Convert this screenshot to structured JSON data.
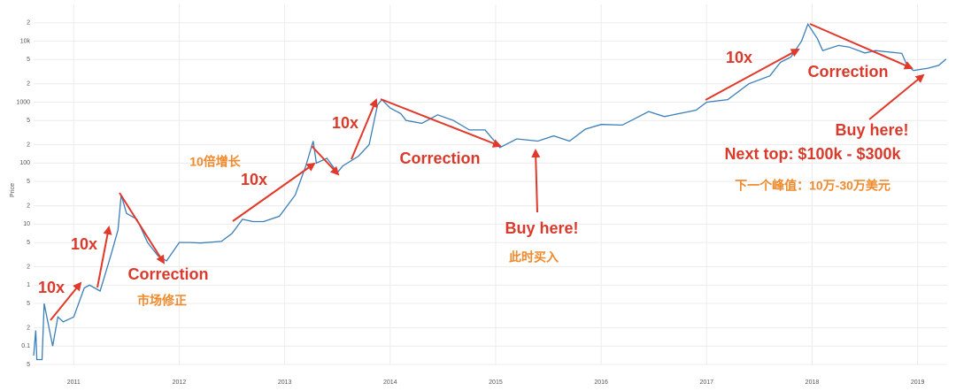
{
  "chart_data": {
    "type": "line",
    "y_label": "Price",
    "log_y": true,
    "grid": true,
    "xlim": [
      2010.62,
      2019.28
    ],
    "xticks": [
      2011,
      2012,
      2013,
      2014,
      2015,
      2016,
      2017,
      2018,
      2019
    ],
    "ylim": [
      0.05,
      40000
    ],
    "yticks": [
      {
        "value": 0.05,
        "label": "5"
      },
      0.1,
      {
        "value": 0.2,
        "label": "2"
      },
      {
        "value": 0.5,
        "label": "5"
      },
      1,
      {
        "value": 2,
        "label": "2"
      },
      {
        "value": 5,
        "label": "5"
      },
      10,
      {
        "value": 20,
        "label": "2"
      },
      {
        "value": 50,
        "label": "5"
      },
      100,
      {
        "value": 200,
        "label": "2"
      },
      {
        "value": 500,
        "label": "5"
      },
      1000,
      {
        "value": 2000,
        "label": "2"
      },
      {
        "value": 5000,
        "label": "5"
      },
      {
        "value": 10000,
        "label": "10k"
      },
      {
        "value": 20000,
        "label": "2"
      }
    ],
    "series": [
      {
        "color": "#3a7fb8",
        "x": [
          2010.62,
          2010.64,
          2010.65,
          2010.7,
          2010.72,
          2010.8,
          2010.85,
          2010.9,
          2011.0,
          2011.1,
          2011.15,
          2011.25,
          2011.35,
          2011.42,
          2011.45,
          2011.5,
          2011.6,
          2011.7,
          2011.8,
          2011.88,
          2012.0,
          2012.1,
          2012.2,
          2012.4,
          2012.5,
          2012.6,
          2012.7,
          2012.8,
          2012.95,
          2013.1,
          2013.2,
          2013.27,
          2013.3,
          2013.4,
          2013.5,
          2013.55,
          2013.7,
          2013.8,
          2013.88,
          2013.92,
          2014.0,
          2014.1,
          2014.15,
          2014.3,
          2014.45,
          2014.6,
          2014.75,
          2014.9,
          2015.04,
          2015.2,
          2015.4,
          2015.55,
          2015.7,
          2015.85,
          2016.0,
          2016.2,
          2016.45,
          2016.6,
          2016.9,
          2017.0,
          2017.2,
          2017.4,
          2017.6,
          2017.7,
          2017.8,
          2017.9,
          2017.96,
          2018.05,
          2018.1,
          2018.25,
          2018.35,
          2018.5,
          2018.6,
          2018.85,
          2018.9,
          2018.96,
          2019.1,
          2019.2,
          2019.27
        ],
        "values": [
          0.07,
          0.18,
          0.06,
          0.06,
          0.5,
          0.1,
          0.3,
          0.25,
          0.3,
          0.9,
          1.0,
          0.8,
          3,
          8,
          30,
          15,
          12,
          5,
          3,
          2.5,
          5,
          5,
          4.9,
          5.2,
          7,
          12,
          11,
          11,
          13.5,
          30,
          90,
          230,
          100,
          120,
          70,
          90,
          130,
          200,
          900,
          1100,
          800,
          650,
          500,
          450,
          620,
          500,
          350,
          350,
          180,
          250,
          230,
          280,
          230,
          360,
          430,
          420,
          700,
          580,
          740,
          1000,
          1100,
          2000,
          2700,
          4500,
          5500,
          10000,
          19000,
          11000,
          7000,
          8500,
          8000,
          6400,
          7000,
          6300,
          4000,
          3300,
          3600,
          4000,
          5100
        ]
      }
    ],
    "annotations": [
      {
        "text": "10x",
        "color": "#d93a2b"
      },
      {
        "text": "10x",
        "color": "#d93a2b"
      },
      {
        "text": "Correction",
        "color": "#d93a2b"
      },
      {
        "text": "市场修正",
        "color": "#f0892b"
      },
      {
        "text": "10倍增长",
        "color": "#f0892b"
      },
      {
        "text": "10x",
        "color": "#d93a2b"
      },
      {
        "text": "10x",
        "color": "#d93a2b"
      },
      {
        "text": "Correction",
        "color": "#d93a2b"
      },
      {
        "text": "Buy here!",
        "color": "#d93a2b"
      },
      {
        "text": "此时买入",
        "color": "#f0892b"
      },
      {
        "text": "10x",
        "color": "#d93a2b"
      },
      {
        "text": "Correction",
        "color": "#d93a2b"
      },
      {
        "text": "Buy here!",
        "color": "#d93a2b"
      },
      {
        "text": "Next top:  $100k - $300k",
        "color": "#d93a2b"
      },
      {
        "text": "下一个峰值：10万-30万美元",
        "color": "#f0892b"
      }
    ]
  }
}
